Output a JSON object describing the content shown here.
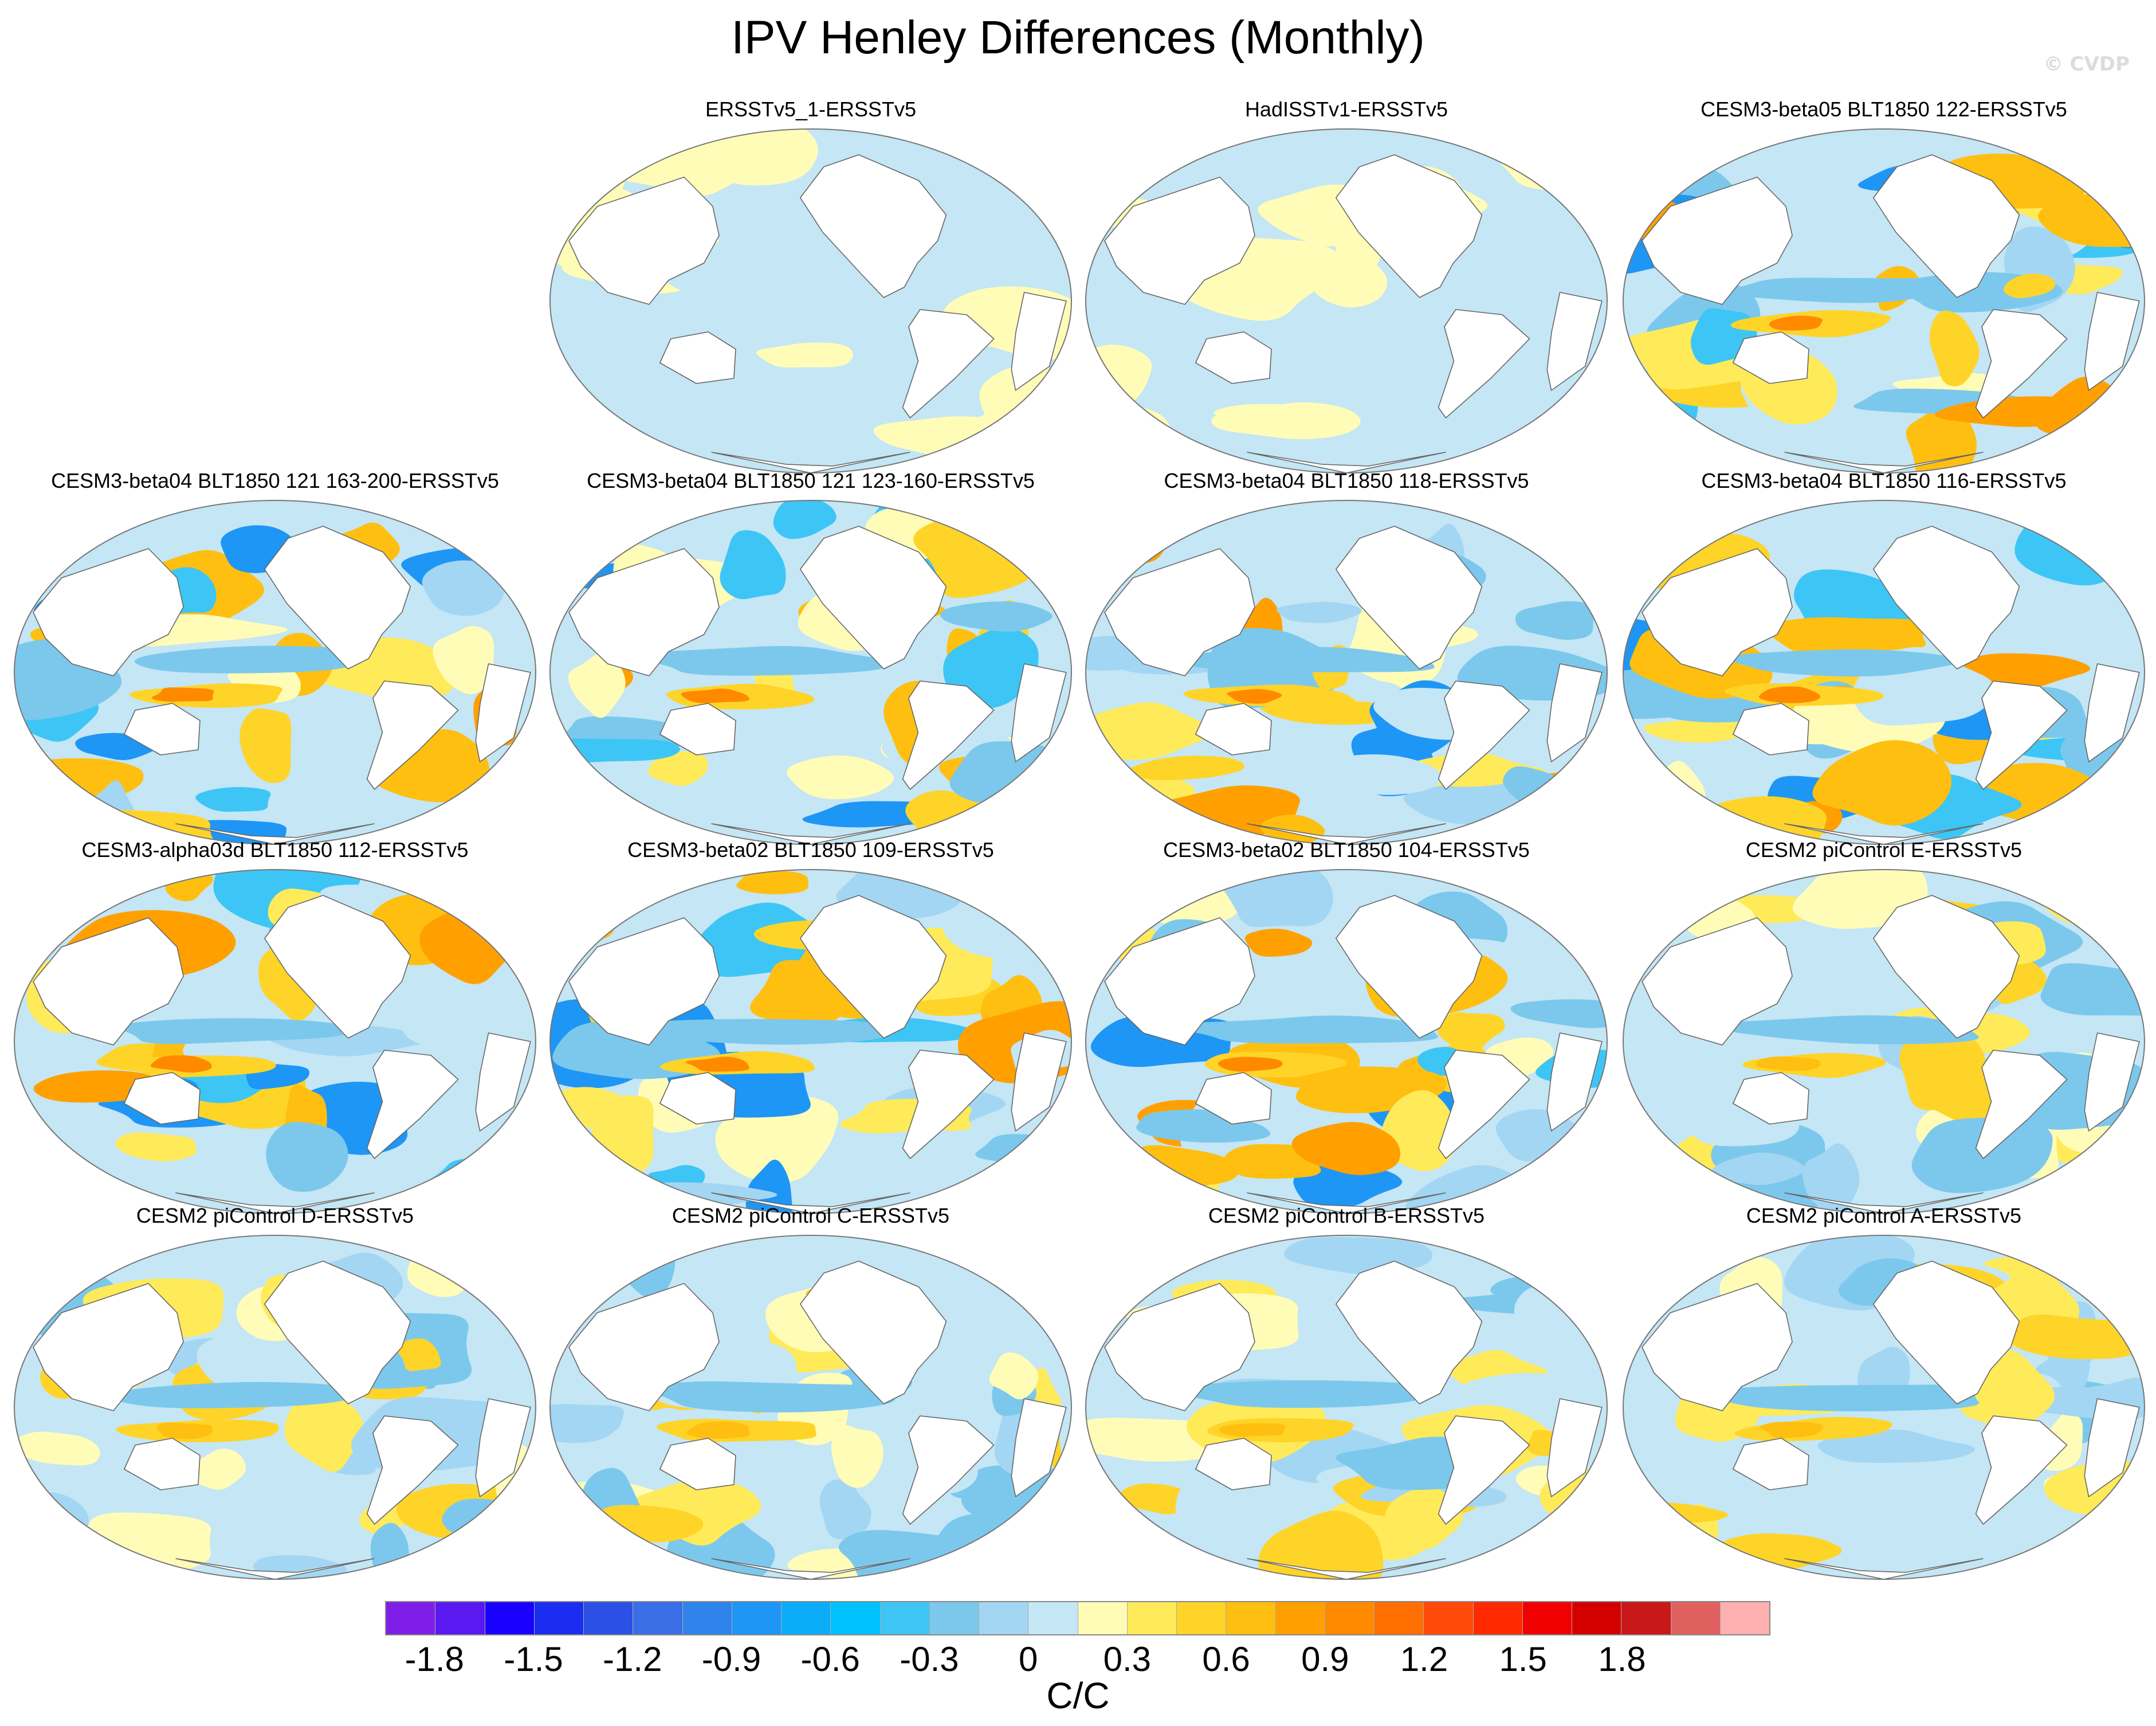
{
  "title": "IPV Henley Differences (Monthly)",
  "watermark": "© CVDP",
  "units_label": "C/C",
  "colorbar": {
    "labels": [
      "-1.8",
      "-1.5",
      "-1.2",
      "-0.9",
      "-0.6",
      "-0.3",
      "0",
      "0.3",
      "0.6",
      "0.9",
      "1.2",
      "1.5",
      "1.8"
    ],
    "colors": [
      "#7f1ee8",
      "#5a19f0",
      "#1a00ff",
      "#1a2df0",
      "#2a50e6",
      "#3a6ee6",
      "#2f84ec",
      "#1e96f5",
      "#0cadf8",
      "#00c2ff",
      "#3dc6f5",
      "#7bc8ec",
      "#a3d6f2",
      "#c4e6f5",
      "#fffcb8",
      "#ffea5a",
      "#ffd428",
      "#ffbf10",
      "#ffa000",
      "#ff8a00",
      "#ff6e00",
      "#ff4a0a",
      "#ff2a00",
      "#f00000",
      "#d40000",
      "#c81818",
      "#e06060",
      "#ffb0b0"
    ]
  },
  "panels": [
    {
      "title": "ERSSTv5_1-ERSSTv5",
      "regime": "weak",
      "seed": 11
    },
    {
      "title": "HadISSTv1-ERSSTv5",
      "regime": "weak",
      "seed": 23
    },
    {
      "title": "CESM3-beta05 BLT1850 122-ERSSTv5",
      "regime": "strong",
      "seed": 37
    },
    {
      "title": "CESM3-beta04 BLT1850 121 163-200-ERSSTv5",
      "regime": "strong",
      "seed": 41
    },
    {
      "title": "CESM3-beta04 BLT1850 121 123-160-ERSSTv5",
      "regime": "strong",
      "seed": 53
    },
    {
      "title": "CESM3-beta04 BLT1850 118-ERSSTv5",
      "regime": "strong",
      "seed": 67
    },
    {
      "title": "CESM3-beta04 BLT1850 116-ERSSTv5",
      "regime": "strong",
      "seed": 71
    },
    {
      "title": "CESM3-alpha03d BLT1850 112-ERSSTv5",
      "regime": "strong",
      "seed": 83
    },
    {
      "title": "CESM3-beta02 BLT1850 109-ERSSTv5",
      "regime": "strong",
      "seed": 97
    },
    {
      "title": "CESM3-beta02 BLT1850 104-ERSSTv5",
      "regime": "strong",
      "seed": 101
    },
    {
      "title": "CESM2 piControl E-ERSSTv5",
      "regime": "moderate",
      "seed": 113
    },
    {
      "title": "CESM2 piControl D-ERSSTv5",
      "regime": "moderate",
      "seed": 127
    },
    {
      "title": "CESM2 piControl C-ERSSTv5",
      "regime": "moderate",
      "seed": 131
    },
    {
      "title": "CESM2 piControl B-ERSSTv5",
      "regime": "moderate",
      "seed": 149
    },
    {
      "title": "CESM2 piControl A-ERSSTv5",
      "regime": "moderate",
      "seed": 157
    }
  ]
}
